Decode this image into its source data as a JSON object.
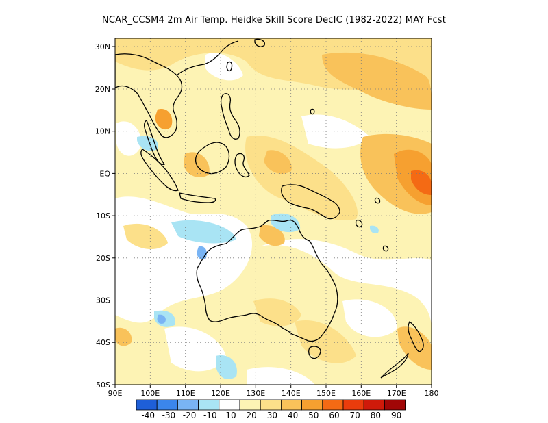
{
  "title": "NCAR_CCSM4  2m Air Temp. Heidke Skill Score DecIC (1982-2022) MAY Fcst",
  "map": {
    "lon_ticks": [
      "90E",
      "100E",
      "110E",
      "120E",
      "130E",
      "140E",
      "150E",
      "160E",
      "170E",
      "180"
    ],
    "lat_ticks": [
      "30N",
      "20N",
      "10N",
      "EQ",
      "10S",
      "20S",
      "30S",
      "40S",
      "50S"
    ],
    "lon_range": [
      90,
      180
    ],
    "lat_range": [
      -50,
      31
    ],
    "grid": "dotted"
  },
  "colorbar": {
    "labels": [
      "-40",
      "-30",
      "-20",
      "-10",
      "10",
      "20",
      "30",
      "40",
      "50",
      "60",
      "70",
      "80",
      "90"
    ],
    "colors": [
      "#1e5fd8",
      "#3b86ec",
      "#79b4f4",
      "#a9e4f4",
      "#ffffff",
      "#fdf3b4",
      "#fce08a",
      "#f9c25a",
      "#f6a030",
      "#f46a14",
      "#ea3c0c",
      "#cf1a0a",
      "#a10606"
    ]
  },
  "field_colors": {
    "white": "#ffffff",
    "yellow_light": "#fdf3b4",
    "yellow": "#fce08a",
    "orange_light": "#f9c25a",
    "orange": "#f6a030",
    "orange_dark": "#f46a14",
    "blue_light": "#a9e4f4",
    "blue": "#79b4f4"
  }
}
